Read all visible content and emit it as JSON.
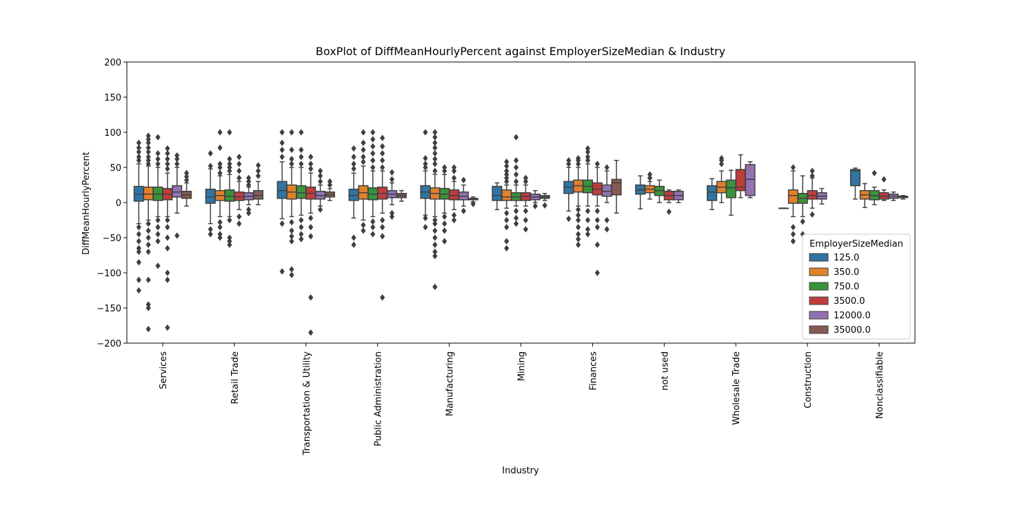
{
  "chart_data": {
    "type": "box",
    "title": "BoxPlot of DiffMeanHourlyPercent against EmployerSizeMedian & Industry",
    "xlabel": "Industry",
    "ylabel": "DiffMeanHourlyPercent",
    "ylim": [
      -200,
      200
    ],
    "yticks": [
      -200,
      -150,
      -100,
      -50,
      0,
      50,
      100,
      150,
      200
    ],
    "grid": false,
    "legend": {
      "title": "EmployerSizeMedian",
      "placement": "lower-right"
    },
    "categories": [
      "Services",
      "Retail Trade",
      "Transportation & Utility",
      "Public Administration",
      "Manufacturing",
      "Mining",
      "Finances",
      "not used",
      "Wholesale Trade",
      "Construction",
      "Nonclassifiable"
    ],
    "series": [
      {
        "name": "125.0",
        "color": "#3274a1",
        "boxes": [
          {
            "q1": 2,
            "median": 12,
            "q3": 23,
            "low": -30,
            "high": 55,
            "outliers": [
              -35,
              -45,
              -55,
              -65,
              -70,
              -85,
              -110,
              -125,
              60,
              65,
              72,
              78,
              85
            ]
          },
          {
            "q1": -1,
            "median": 8,
            "q3": 19,
            "low": -30,
            "high": 48,
            "outliers": [
              -38,
              -45,
              52,
              70
            ]
          },
          {
            "q1": 6,
            "median": 17,
            "q3": 30,
            "low": -23,
            "high": 58,
            "outliers": [
              -30,
              -98,
              65,
              75,
              85,
              100
            ]
          },
          {
            "q1": 3,
            "median": 10,
            "q3": 19,
            "low": -22,
            "high": 42,
            "outliers": [
              -50,
              -60,
              48,
              55,
              65,
              77
            ]
          },
          {
            "q1": 6,
            "median": 15,
            "q3": 24,
            "low": -18,
            "high": 45,
            "outliers": [
              -22,
              -35,
              50,
              55,
              63,
              100
            ]
          },
          {
            "q1": 3,
            "median": 10,
            "q3": 23,
            "low": -10,
            "high": 28,
            "outliers": []
          },
          {
            "q1": 13,
            "median": 22,
            "q3": 30,
            "low": -12,
            "high": 50,
            "outliers": [
              -23,
              55,
              60
            ]
          },
          {
            "q1": 12,
            "median": 18,
            "q3": 25,
            "low": -9,
            "high": 38,
            "outliers": []
          },
          {
            "q1": 3,
            "median": 15,
            "q3": 24,
            "low": -10,
            "high": 34,
            "outliers": []
          },
          {
            "q1": -8,
            "median": -8,
            "q3": -8,
            "low": -8,
            "high": -8,
            "outliers": []
          },
          {
            "q1": 24,
            "median": 45,
            "q3": 47,
            "low": 5,
            "high": 49,
            "outliers": []
          }
        ]
      },
      {
        "name": "350.0",
        "color": "#e1812c",
        "boxes": [
          {
            "q1": 4,
            "median": 12,
            "q3": 22,
            "low": -25,
            "high": 52,
            "outliers": [
              -30,
              -40,
              -50,
              -60,
              -70,
              -110,
              -145,
              -150,
              -180,
              55,
              60,
              65,
              72,
              78,
              85,
              90,
              95
            ]
          },
          {
            "q1": 3,
            "median": 10,
            "q3": 17,
            "low": -20,
            "high": 38,
            "outliers": [
              -28,
              -35,
              -45,
              -50,
              42,
              50,
              55,
              78,
              100
            ]
          },
          {
            "q1": 5,
            "median": 15,
            "q3": 25,
            "low": -20,
            "high": 50,
            "outliers": [
              -28,
              -40,
              -48,
              -55,
              -95,
              -103,
              55,
              62,
              75,
              100
            ]
          },
          {
            "q1": 5,
            "median": 14,
            "q3": 24,
            "low": -25,
            "high": 52,
            "outliers": [
              -32,
              -40,
              58,
              65,
              75,
              85,
              100
            ]
          },
          {
            "q1": 5,
            "median": 13,
            "q3": 21,
            "low": -20,
            "high": 40,
            "outliers": [
              -25,
              -30,
              -40,
              -50,
              -60,
              -70,
              -76,
              -120,
              45,
              55,
              62,
              70,
              78,
              85,
              93,
              100
            ]
          },
          {
            "q1": 3,
            "median": 8,
            "q3": 18,
            "low": -8,
            "high": 25,
            "outliers": [
              -15,
              -25,
              -35,
              -55,
              -65,
              30,
              35,
              40,
              45,
              52,
              58
            ]
          },
          {
            "q1": 15,
            "median": 24,
            "q3": 32,
            "low": -5,
            "high": 50,
            "outliers": [
              -10,
              -18,
              -25,
              -35,
              -45,
              -52,
              -60,
              55,
              60,
              63
            ]
          },
          {
            "q1": 14,
            "median": 19,
            "q3": 24,
            "low": 5,
            "high": 30,
            "outliers": [
              35,
              40
            ]
          },
          {
            "q1": 14,
            "median": 22,
            "q3": 30,
            "low": 0,
            "high": 45,
            "outliers": [
              55,
              60,
              63
            ]
          },
          {
            "q1": -1,
            "median": 10,
            "q3": 18,
            "low": -20,
            "high": 45,
            "outliers": [
              -35,
              -45,
              -55,
              50
            ]
          },
          {
            "q1": 5,
            "median": 11,
            "q3": 17,
            "low": -7,
            "high": 27,
            "outliers": []
          }
        ]
      },
      {
        "name": "750.0",
        "color": "#3a923a",
        "boxes": [
          {
            "q1": 3,
            "median": 12,
            "q3": 22,
            "low": -20,
            "high": 50,
            "outliers": [
              -25,
              -35,
              -45,
              -55,
              -90,
              55,
              62,
              70,
              93
            ]
          },
          {
            "q1": 2,
            "median": 9,
            "q3": 18,
            "low": -20,
            "high": 40,
            "outliers": [
              -25,
              -50,
              -55,
              -60,
              45,
              50,
              55,
              62,
              100
            ]
          },
          {
            "q1": 6,
            "median": 14,
            "q3": 24,
            "low": -18,
            "high": 50,
            "outliers": [
              -25,
              -35,
              -45,
              -52,
              55,
              65,
              75,
              100
            ]
          },
          {
            "q1": 4,
            "median": 12,
            "q3": 21,
            "low": -20,
            "high": 45,
            "outliers": [
              -27,
              -35,
              -45,
              50,
              60,
              70,
              80,
              90,
              100
            ]
          },
          {
            "q1": 5,
            "median": 12,
            "q3": 20,
            "low": -15,
            "high": 40,
            "outliers": [
              -20,
              -30,
              -40,
              -55,
              45,
              50
            ]
          },
          {
            "q1": 3,
            "median": 8,
            "q3": 14,
            "low": -5,
            "high": 25,
            "outliers": [
              -12,
              -22,
              -30,
              30,
              40,
              50,
              60,
              93
            ]
          },
          {
            "q1": 14,
            "median": 23,
            "q3": 32,
            "low": -5,
            "high": 55,
            "outliers": [
              -12,
              -25,
              -38,
              -45,
              60,
              65,
              72,
              77
            ]
          },
          {
            "q1": 10,
            "median": 17,
            "q3": 23,
            "low": 0,
            "high": 32,
            "outliers": []
          },
          {
            "q1": 7,
            "median": 21,
            "q3": 32,
            "low": -18,
            "high": 46,
            "outliers": []
          },
          {
            "q1": -1,
            "median": 6,
            "q3": 13,
            "low": -20,
            "high": 38,
            "outliers": [
              -27,
              -45
            ]
          },
          {
            "q1": 4,
            "median": 10,
            "q3": 17,
            "low": -3,
            "high": 22,
            "outliers": [
              42
            ]
          }
        ]
      },
      {
        "name": "3500.0",
        "color": "#c03d3e",
        "boxes": [
          {
            "q1": 4,
            "median": 12,
            "q3": 20,
            "low": -20,
            "high": 42,
            "outliers": [
              -25,
              -35,
              -50,
              -65,
              -100,
              -110,
              -178,
              48,
              55,
              62,
              70,
              77
            ]
          },
          {
            "q1": 3,
            "median": 8,
            "q3": 15,
            "low": -10,
            "high": 30,
            "outliers": [
              -20,
              -30,
              35,
              45,
              55,
              65
            ]
          },
          {
            "q1": 5,
            "median": 13,
            "q3": 22,
            "low": -15,
            "high": 42,
            "outliers": [
              -22,
              -35,
              -48,
              -135,
              -185,
              48,
              55,
              65
            ]
          },
          {
            "q1": 5,
            "median": 13,
            "q3": 22,
            "low": -15,
            "high": 45,
            "outliers": [
              -25,
              -35,
              -48,
              -135,
              50,
              60,
              70,
              80,
              92
            ]
          },
          {
            "q1": 4,
            "median": 10,
            "q3": 18,
            "low": -10,
            "high": 30,
            "outliers": [
              -18,
              -25,
              35,
              45,
              50
            ]
          },
          {
            "q1": 3,
            "median": 9,
            "q3": 14,
            "low": -5,
            "high": 25,
            "outliers": [
              -12,
              -25,
              -38,
              30,
              35
            ]
          },
          {
            "q1": 11,
            "median": 19,
            "q3": 28,
            "low": -5,
            "high": 50,
            "outliers": [
              -12,
              -25,
              -35,
              -60,
              -100,
              55
            ]
          },
          {
            "q1": 4,
            "median": 10,
            "q3": 16,
            "low": 0,
            "high": 18,
            "outliers": [
              -13
            ]
          },
          {
            "q1": 17,
            "median": 22,
            "q3": 47,
            "low": 7,
            "high": 68,
            "outliers": []
          },
          {
            "q1": 5,
            "median": 10,
            "q3": 17,
            "low": -8,
            "high": 35,
            "outliers": [
              -17,
              38,
              45
            ]
          },
          {
            "q1": 5,
            "median": 9,
            "q3": 14,
            "low": 3,
            "high": 18,
            "outliers": [
              33
            ]
          }
        ]
      },
      {
        "name": "12000.0",
        "color": "#9372b2",
        "boxes": [
          {
            "q1": 8,
            "median": 15,
            "q3": 24,
            "low": -15,
            "high": 50,
            "outliers": [
              -47,
              55,
              62,
              67
            ]
          },
          {
            "q1": 4,
            "median": 9,
            "q3": 14,
            "low": -3,
            "high": 22,
            "outliers": [
              -10,
              -15,
              25,
              30,
              35
            ]
          },
          {
            "q1": 5,
            "median": 10,
            "q3": 16,
            "low": -5,
            "high": 25,
            "outliers": [
              -10,
              30,
              38,
              45
            ]
          },
          {
            "q1": 7,
            "median": 12,
            "q3": 17,
            "low": -3,
            "high": 28,
            "outliers": [
              -15,
              -20,
              33,
              43
            ]
          },
          {
            "q1": 4,
            "median": 9,
            "q3": 15,
            "low": -5,
            "high": 25,
            "outliers": [
              -12,
              32
            ]
          },
          {
            "q1": 4,
            "median": 8,
            "q3": 12,
            "low": 0,
            "high": 17,
            "outliers": [
              -5
            ]
          },
          {
            "q1": 9,
            "median": 16,
            "q3": 25,
            "low": 0,
            "high": 45,
            "outliers": [
              -25,
              -38,
              50
            ]
          },
          {
            "q1": 4,
            "median": 10,
            "q3": 16,
            "low": 0,
            "high": 18,
            "outliers": []
          },
          {
            "q1": 10,
            "median": 33,
            "q3": 54,
            "low": 7,
            "high": 58,
            "outliers": []
          },
          {
            "q1": 5,
            "median": 9,
            "q3": 14,
            "low": -2,
            "high": 20,
            "outliers": []
          },
          {
            "q1": 6,
            "median": 9,
            "q3": 12,
            "low": 3,
            "high": 15,
            "outliers": []
          }
        ]
      },
      {
        "name": "35000.0",
        "color": "#845b53",
        "boxes": [
          {
            "q1": 6,
            "median": 11,
            "q3": 16,
            "low": -5,
            "high": 28,
            "outliers": [
              32,
              37,
              42
            ]
          },
          {
            "q1": 5,
            "median": 10,
            "q3": 17,
            "low": -3,
            "high": 30,
            "outliers": [
              38,
              45,
              53
            ]
          },
          {
            "q1": 8,
            "median": 11,
            "q3": 15,
            "low": 3,
            "high": 20,
            "outliers": [
              25,
              30
            ]
          },
          {
            "q1": 7,
            "median": 10,
            "q3": 13,
            "low": 2,
            "high": 17,
            "outliers": []
          },
          {
            "q1": 4,
            "median": 5,
            "q3": 6,
            "low": 1,
            "high": 8,
            "outliers": [
              -2
            ]
          },
          {
            "q1": 6,
            "median": 8,
            "q3": 10,
            "low": 3,
            "high": 13,
            "outliers": [
              -4
            ]
          },
          {
            "q1": 11,
            "median": 28,
            "q3": 33,
            "low": -15,
            "high": 60,
            "outliers": []
          },
          null,
          null,
          null,
          {
            "q1": 7,
            "median": 8,
            "q3": 9,
            "low": 5,
            "high": 10,
            "outliers": []
          }
        ]
      }
    ]
  }
}
